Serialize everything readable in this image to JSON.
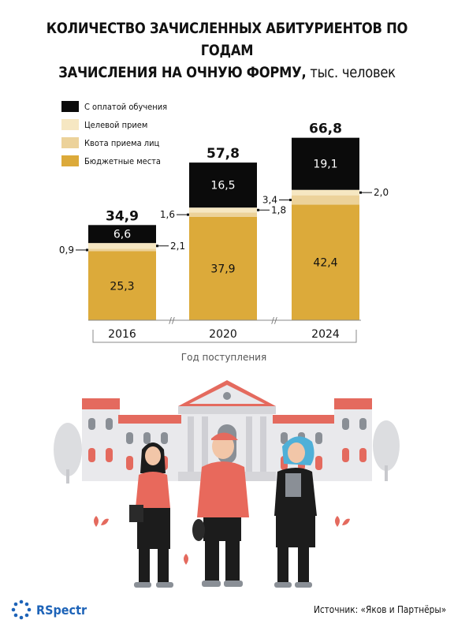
{
  "header": {
    "title_line1": "КОЛИЧЕСТВО ЗАЧИСЛЕННЫХ АБИТУРИЕНТОВ ПО ГОДАМ",
    "title_line2_bold": "ЗАЧИСЛЕНИЯ НА ОЧНУЮ ФОРМУ,",
    "title_line2_unit": " тыс. человек"
  },
  "chart_data": {
    "type": "bar",
    "stacked": true,
    "categories": [
      "2016",
      "2020",
      "2024"
    ],
    "series": [
      {
        "name": "Бюджетные места",
        "values": [
          25.3,
          37.9,
          42.4
        ],
        "labels": [
          "25,3",
          "37,9",
          "42,4"
        ],
        "color": "#dcaa3a"
      },
      {
        "name": "Квота приема лиц",
        "values": [
          0.9,
          1.6,
          3.4
        ],
        "labels": [
          "0,9",
          "1,6",
          "3,4"
        ],
        "color": "#ecd29a"
      },
      {
        "name": "Целевой прием",
        "values": [
          2.1,
          1.8,
          2.0
        ],
        "labels": [
          "2,1",
          "1,8",
          "2,0"
        ],
        "color": "#f6e7c2"
      },
      {
        "name": "С оплатой обучения",
        "values": [
          6.6,
          16.5,
          19.1
        ],
        "labels": [
          "6,6",
          "16,5",
          "19,1"
        ],
        "color": "#0b0b0b"
      }
    ],
    "totals": [
      34.9,
      57.8,
      66.8
    ],
    "total_labels": [
      "34,9",
      "57,8",
      "66,8"
    ],
    "xlabel": "Год поступления",
    "ylabel": "",
    "ylim": [
      0,
      66.8
    ],
    "legend_position": "top-left",
    "grid": false
  },
  "footer": {
    "logo_text": "RSpectr",
    "source": "Источник: «Яков и Партнёры»"
  },
  "colors": {
    "gold": "#dcaa3a",
    "black": "#0b0b0b",
    "building": "#e8e8ea",
    "roof": "#e46a5e",
    "logo_blue": "#1d63b8"
  }
}
